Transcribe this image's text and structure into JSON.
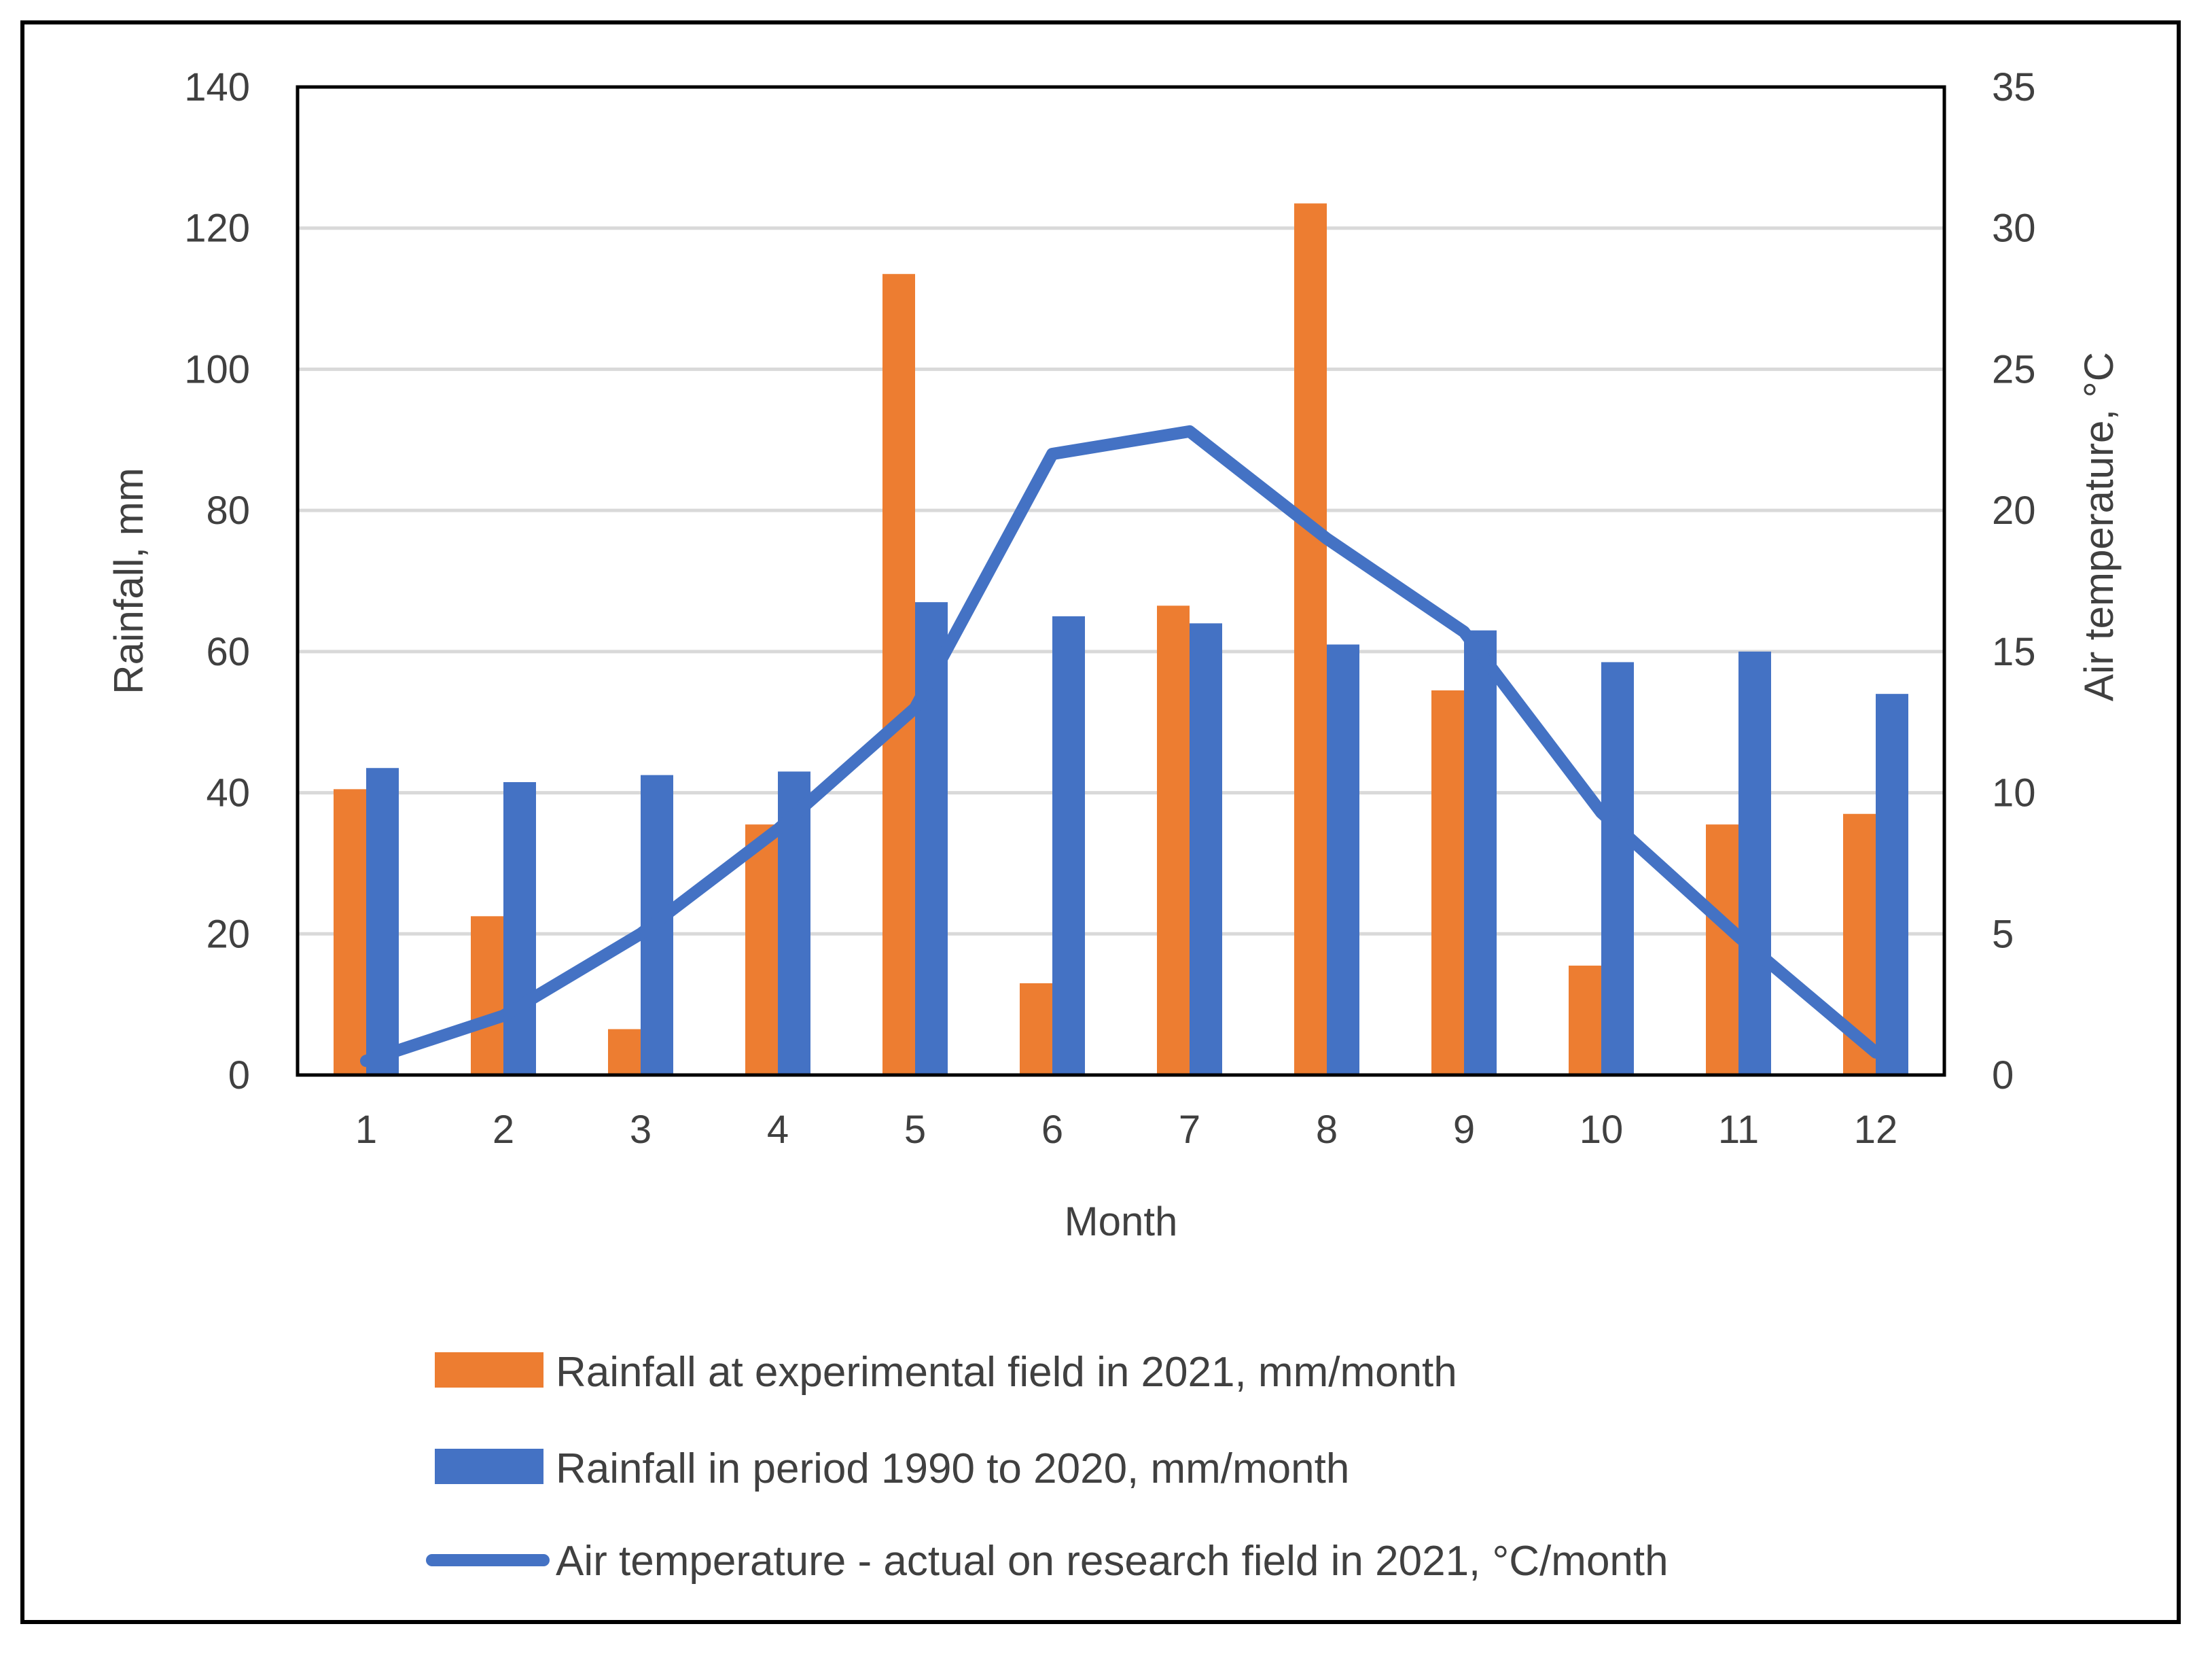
{
  "chart_data": {
    "type": "bar",
    "title": "",
    "xlabel": "Month",
    "ylabel": "Rainfall, mm",
    "y2label": "Air temperature, °C",
    "categories": [
      "1",
      "2",
      "3",
      "4",
      "5",
      "6",
      "7",
      "8",
      "9",
      "10",
      "11",
      "12"
    ],
    "ylim": [
      0,
      140
    ],
    "y2lim": [
      0,
      35
    ],
    "yticks": [
      0,
      20,
      40,
      60,
      80,
      100,
      120,
      140
    ],
    "y2ticks": [
      0,
      5,
      10,
      15,
      20,
      25,
      30,
      35
    ],
    "grid": true,
    "legend_position": "bottom",
    "series": [
      {
        "name": "Rainfall at experimental field in 2021, mm/month",
        "type": "bar",
        "axis": "left",
        "color": "#ED7D31",
        "values": [
          40.5,
          22.5,
          6.5,
          35.5,
          113.5,
          13,
          66.5,
          123.5,
          54.5,
          15.5,
          35.5,
          37
        ]
      },
      {
        "name": "Rainfall in period 1990 to 2020, mm/month",
        "type": "bar",
        "axis": "left",
        "color": "#4472C4",
        "values": [
          43.5,
          41.5,
          42.5,
          43,
          67,
          65,
          64,
          61,
          63,
          58.5,
          60,
          54
        ]
      },
      {
        "name": "Air temperature - actual on research field in 2021, °C/month",
        "type": "line",
        "axis": "right",
        "color": "#4472C4",
        "values": [
          0.5,
          2.1,
          5.0,
          8.7,
          13.0,
          22.0,
          22.8,
          19.0,
          15.7,
          9.3,
          4.9,
          0.8
        ]
      }
    ]
  }
}
